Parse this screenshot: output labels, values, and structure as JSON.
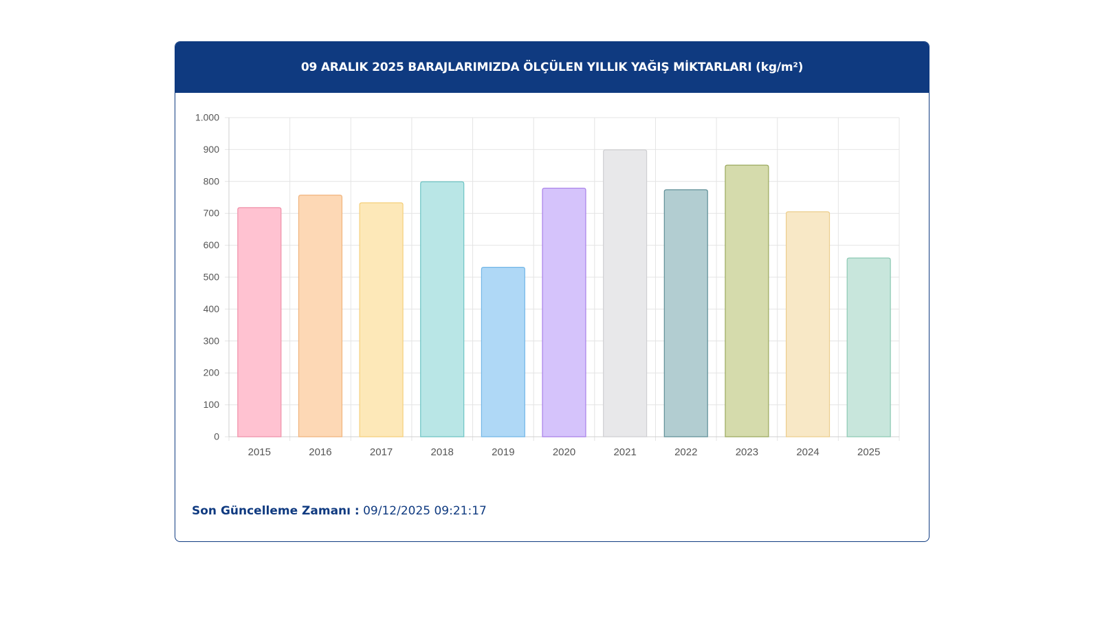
{
  "header": {
    "title": "09 ARALIK 2025 BARAJLARIMIZDA ÖLÇÜLEN YILLIK YAĞIŞ MİKTARLARI (kg/m²)"
  },
  "footer": {
    "label": "Son Güncelleme Zamanı :",
    "value": "09/12/2025 09:21:17"
  },
  "colors": {
    "header_bg": "#0f3a80",
    "footer_text": "#0f3a80"
  },
  "chart_data": {
    "type": "bar",
    "title": "09 ARALIK 2025 BARAJLARIMIZDA ÖLÇÜLEN YILLIK YAĞIŞ MİKTARLARI (kg/m²)",
    "xlabel": "",
    "ylabel": "",
    "categories": [
      "2015",
      "2016",
      "2017",
      "2018",
      "2019",
      "2020",
      "2021",
      "2022",
      "2023",
      "2024",
      "2025"
    ],
    "values": [
      718,
      757,
      733,
      799,
      531,
      779,
      899,
      774,
      851,
      705,
      560
    ],
    "ylim": [
      0,
      1000
    ],
    "yticks": [
      0,
      100,
      200,
      300,
      400,
      500,
      600,
      700,
      800,
      900,
      1000
    ],
    "ytick_labels": [
      "0",
      "100",
      "200",
      "300",
      "400",
      "500",
      "600",
      "700",
      "800",
      "900",
      "1.000"
    ],
    "grid": true,
    "legend": "none",
    "bar_fill_colors": [
      "#ffc2d1",
      "#fdd8b5",
      "#fde8b8",
      "#b9e6e6",
      "#afd8f6",
      "#d5c3fb",
      "#e8e8ea",
      "#b2cdd1",
      "#d5dbac",
      "#f8e8c6",
      "#c8e6dc"
    ],
    "bar_border_colors": [
      "#ef8fa9",
      "#f0b37c",
      "#f5cf7a",
      "#6cc4c4",
      "#72b6e6",
      "#a77ee8",
      "#cfcfd2",
      "#5f8f97",
      "#9aa85c",
      "#eccd8c",
      "#8cc9b3"
    ]
  }
}
